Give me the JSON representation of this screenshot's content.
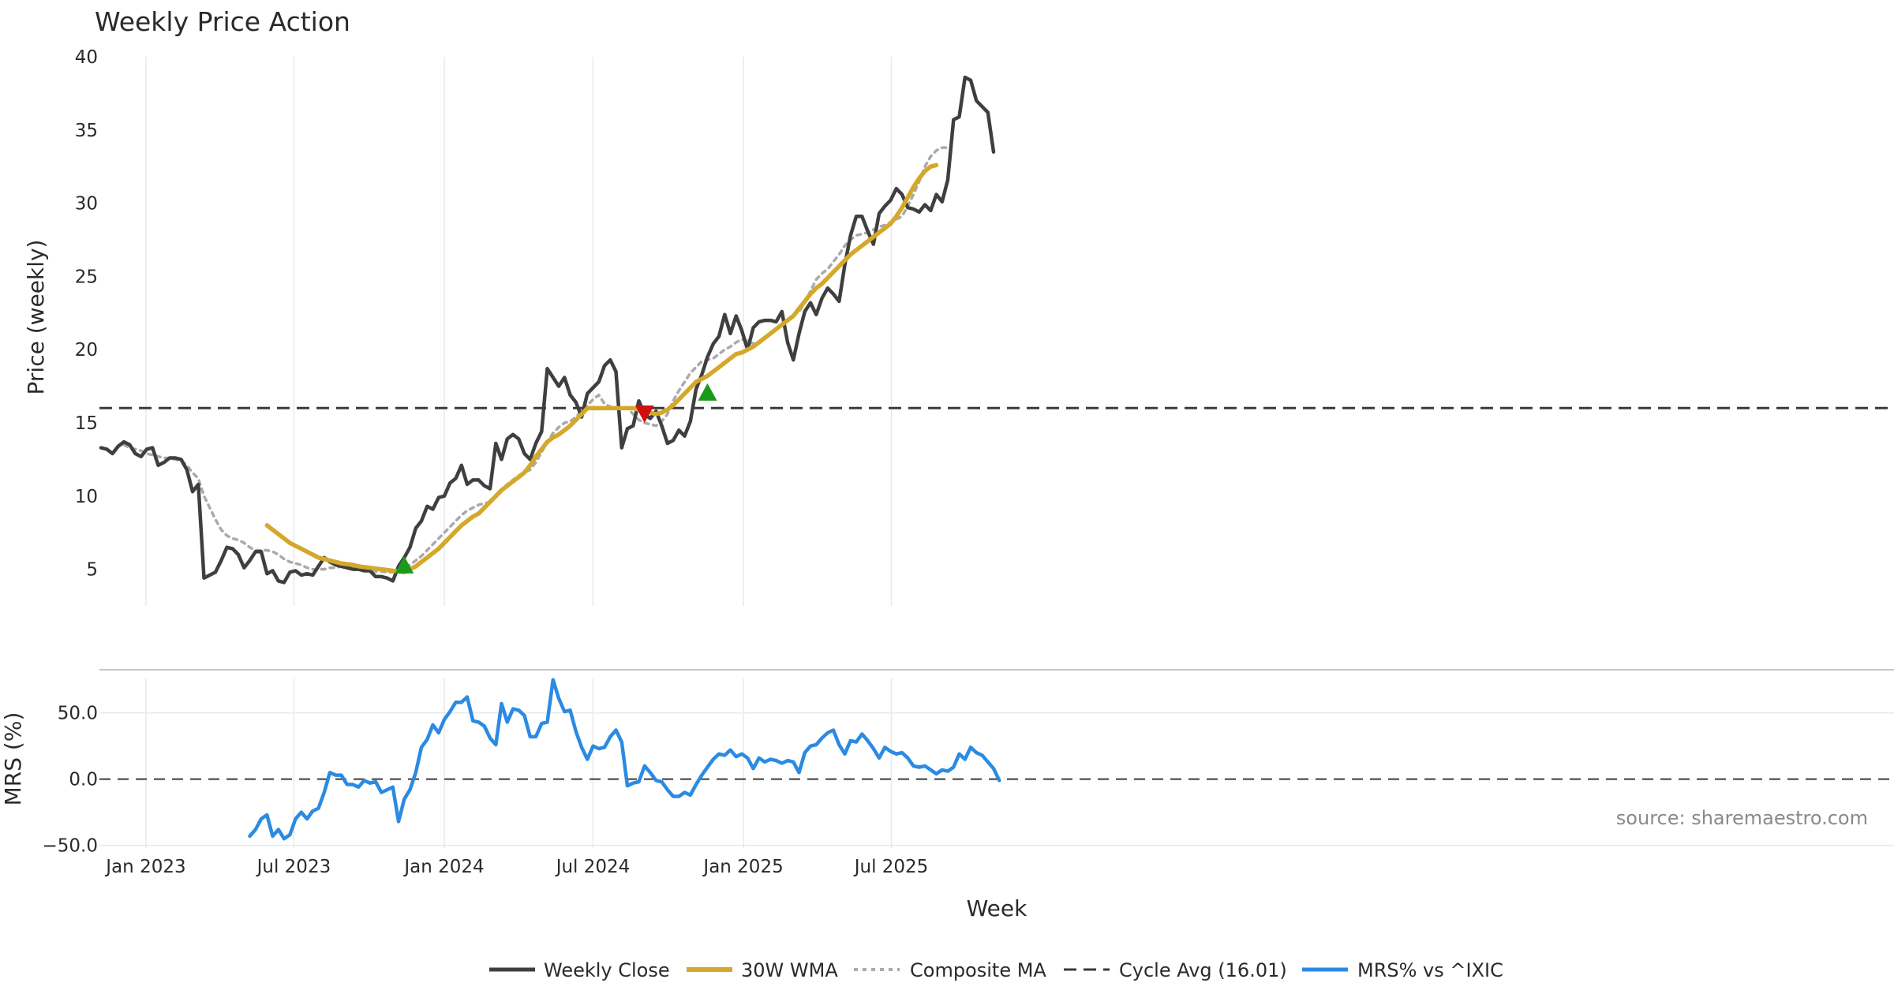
{
  "colors": {
    "close": "#3f3f3f",
    "wma": "#d4a82a",
    "composite": "#aaaaaa",
    "cycle": "#3a3a3a",
    "mrs": "#2b8ae2",
    "up": "#1a9a1a",
    "down": "#d01010",
    "grid": "#e9e9e9",
    "separator": "#c8c8c8"
  },
  "chart_data": [
    {
      "type": "line",
      "title": "Weekly Price Action",
      "xlabel": "",
      "ylabel": "Price (weekly)",
      "ylim": [
        2.5,
        40
      ],
      "y_ticks": [
        5,
        10,
        15,
        20,
        25,
        30,
        35,
        40
      ],
      "x_start": "2022-11-07",
      "x_step_weeks": 1,
      "reference_line": {
        "name": "Cycle Avg (16.01)",
        "value": 16.01
      },
      "series": [
        {
          "name": "Weekly Close",
          "start_index": 0,
          "values": [
            13.3,
            13.2,
            12.9,
            13.4,
            13.7,
            13.5,
            12.9,
            12.7,
            13.2,
            13.3,
            12.1,
            12.3,
            12.6,
            12.6,
            12.5,
            11.8,
            10.3,
            10.8,
            4.4,
            4.6,
            4.8,
            5.6,
            6.5,
            6.4,
            6.0,
            5.1,
            5.6,
            6.2,
            6.2,
            4.7,
            4.9,
            4.2,
            4.1,
            4.8,
            4.9,
            4.6,
            4.7,
            4.6,
            5.2,
            5.8,
            5.5,
            5.3,
            5.2,
            5.1,
            5.0,
            5.0,
            4.9,
            4.9,
            4.5,
            4.5,
            4.4,
            4.2,
            5.2,
            5.8,
            6.5,
            7.8,
            8.3,
            9.3,
            9.1,
            9.9,
            10.0,
            10.9,
            11.2,
            12.1,
            10.8,
            11.1,
            11.1,
            10.7,
            10.5,
            13.6,
            12.5,
            13.9,
            14.2,
            13.9,
            12.9,
            12.5,
            13.6,
            14.4,
            18.7,
            18.1,
            17.5,
            18.1,
            16.9,
            16.4,
            15.4,
            17.0,
            17.4,
            17.8,
            18.9,
            19.3,
            18.5,
            13.3,
            14.6,
            14.8,
            16.5,
            15.6,
            15.3,
            15.8,
            14.8,
            13.6,
            13.8,
            14.5,
            14.1,
            15.1,
            17.3,
            18.3,
            19.5,
            20.4,
            20.9,
            22.4,
            21.1,
            22.3,
            21.3,
            20.0,
            21.5,
            21.9,
            22.0,
            22.0,
            21.9,
            22.6,
            20.5,
            19.3,
            21.1,
            22.6,
            23.2,
            22.4,
            23.5,
            24.2,
            23.8,
            23.3,
            25.8,
            27.8,
            29.1,
            29.1,
            28.1,
            27.2,
            29.3,
            29.8,
            30.2,
            31.0,
            30.6,
            29.7,
            29.6,
            29.4,
            29.9,
            29.5,
            30.6,
            30.1,
            31.6,
            35.7,
            35.9,
            38.6,
            38.4,
            37.0,
            36.6,
            36.2,
            33.5
          ]
        },
        {
          "name": "30W WMA",
          "start_index": 29,
          "values": [
            8.0,
            7.7,
            7.4,
            7.1,
            6.8,
            6.6,
            6.4,
            6.2,
            6.0,
            5.8,
            5.7,
            5.6,
            5.5,
            5.4,
            5.35,
            5.3,
            5.2,
            5.15,
            5.1,
            5.05,
            5.0,
            4.95,
            4.9,
            4.85,
            4.8,
            5.0,
            5.2,
            5.5,
            5.8,
            6.1,
            6.4,
            6.8,
            7.2,
            7.6,
            8.0,
            8.3,
            8.6,
            8.8,
            9.2,
            9.6,
            10.0,
            10.4,
            10.7,
            11.0,
            11.3,
            11.6,
            12.1,
            12.7,
            13.2,
            13.7,
            14.0,
            14.2,
            14.5,
            14.8,
            15.2,
            15.6,
            16.0,
            16.0,
            16.0,
            16.0,
            16.0,
            16.0,
            16.0,
            16.0,
            16.0,
            15.9,
            15.8,
            15.7,
            15.6,
            15.7,
            15.9,
            16.2,
            16.6,
            17.0,
            17.4,
            17.8,
            18.0,
            18.2,
            18.5,
            18.8,
            19.1,
            19.4,
            19.7,
            19.8,
            20.0,
            20.2,
            20.5,
            20.8,
            21.1,
            21.4,
            21.7,
            22.0,
            22.3,
            22.8,
            23.3,
            23.8,
            24.2,
            24.5,
            24.9,
            25.3,
            25.7,
            26.1,
            26.5,
            26.8,
            27.1,
            27.4,
            27.7,
            28.0,
            28.3,
            28.6,
            29.1,
            29.7,
            30.4,
            31.1,
            31.7,
            32.2,
            32.5,
            32.6
          ]
        },
        {
          "name": "Composite MA",
          "start_index": 4,
          "values": [
            13.5,
            13.3,
            13.2,
            13.1,
            12.9,
            12.8,
            12.7,
            12.6,
            12.6,
            12.5,
            12.4,
            12.1,
            11.6,
            11.2,
            10.0,
            9.2,
            8.4,
            7.7,
            7.3,
            7.1,
            7.0,
            6.8,
            6.5,
            6.3,
            6.3,
            6.3,
            6.2,
            6.0,
            5.7,
            5.5,
            5.4,
            5.3,
            5.1,
            5.0,
            5.0,
            5.0,
            5.1,
            5.1,
            5.2,
            5.2,
            5.1,
            5.0,
            4.95,
            4.9,
            4.85,
            4.85,
            4.8,
            4.8,
            4.85,
            5.1,
            5.3,
            5.6,
            5.9,
            6.3,
            6.7,
            7.1,
            7.5,
            7.9,
            8.3,
            8.7,
            9.0,
            9.2,
            9.4,
            9.5,
            9.6,
            10.0,
            10.4,
            10.8,
            11.1,
            11.4,
            11.6,
            11.8,
            12.3,
            13.0,
            13.7,
            14.3,
            14.7,
            15.0,
            15.1,
            15.4,
            15.8,
            16.2,
            16.6,
            16.9,
            16.3,
            16.1,
            16.0,
            16.1,
            16.0,
            15.6,
            15.2,
            15.0,
            14.9,
            14.8,
            15.1,
            15.6,
            16.5,
            17.2,
            17.8,
            18.4,
            18.8,
            19.2,
            19.3,
            19.4,
            19.7,
            20.0,
            20.2,
            20.5,
            20.7,
            20.6,
            20.4,
            20.5,
            20.8,
            21.1,
            21.4,
            21.7,
            22.0,
            22.3,
            22.6,
            23.2,
            24.0,
            24.8,
            25.2,
            25.5,
            26.0,
            26.5,
            27.1,
            27.5,
            27.8,
            27.9,
            28.0,
            28.2,
            28.4,
            28.5,
            28.7,
            28.9,
            29.1,
            29.8,
            30.6,
            31.5,
            32.5,
            33.2,
            33.6,
            33.8,
            33.8
          ]
        }
      ],
      "markers": [
        {
          "type": "up",
          "week_index": 53,
          "value": 5.2
        },
        {
          "type": "down",
          "week_index": 95,
          "value": 15.7
        },
        {
          "type": "up",
          "week_index": 106,
          "value": 17.0
        }
      ]
    },
    {
      "type": "line",
      "xlabel": "Week",
      "ylabel": "MRS (%)",
      "ylim": [
        -52,
        76
      ],
      "y_ticks": [
        -50,
        0,
        50
      ],
      "y_tick_labels": [
        "−50.0",
        "0.0",
        "50.0"
      ],
      "x_ticks": [
        "Jan 2023",
        "Jul 2023",
        "Jan 2024",
        "Jul 2024",
        "Jan 2025",
        "Jul 2025"
      ],
      "reference_line": {
        "value": 0
      },
      "annotation": "source: sharemaestro.com",
      "series": [
        {
          "name": "MRS% vs ^IXIC",
          "start_index": 26,
          "values": [
            -43,
            -38,
            -30,
            -27,
            -43,
            -38,
            -45,
            -42,
            -30,
            -25,
            -30,
            -24,
            -22,
            -10,
            5,
            3,
            3,
            -4,
            -4,
            -6,
            -1,
            -3,
            -2,
            -10,
            -8,
            -6,
            -32,
            -15,
            -8,
            5,
            24,
            30,
            41,
            35,
            45,
            51,
            58,
            58,
            62,
            44,
            43,
            40,
            31,
            26,
            57,
            43,
            53,
            52,
            48,
            32,
            32,
            42,
            43,
            75,
            61,
            51,
            52,
            36,
            24,
            15,
            25,
            23,
            24,
            32,
            37,
            28,
            -5,
            -3,
            -2,
            10,
            5,
            -1,
            -2,
            -8,
            -13,
            -13,
            -10,
            -12,
            -4,
            3,
            9,
            15,
            19,
            18,
            22,
            17,
            19,
            16,
            8,
            16,
            13,
            15,
            14,
            12,
            14,
            13,
            5,
            20,
            25,
            26,
            31,
            35,
            37,
            26,
            19,
            29,
            28,
            34,
            29,
            23,
            16,
            24,
            21,
            19,
            20,
            16,
            10,
            9,
            10,
            7,
            4,
            7,
            6,
            9,
            19,
            15,
            24,
            20,
            18,
            13,
            8,
            -1
          ]
        }
      ]
    }
  ],
  "legend": {
    "items": [
      {
        "label": "Weekly Close",
        "style": "close"
      },
      {
        "label": "30W WMA",
        "style": "wma"
      },
      {
        "label": "Composite MA",
        "style": "composite"
      },
      {
        "label": "Cycle Avg (16.01)",
        "style": "cycle"
      },
      {
        "label": "MRS% vs ^IXIC",
        "style": "mrs"
      }
    ]
  }
}
